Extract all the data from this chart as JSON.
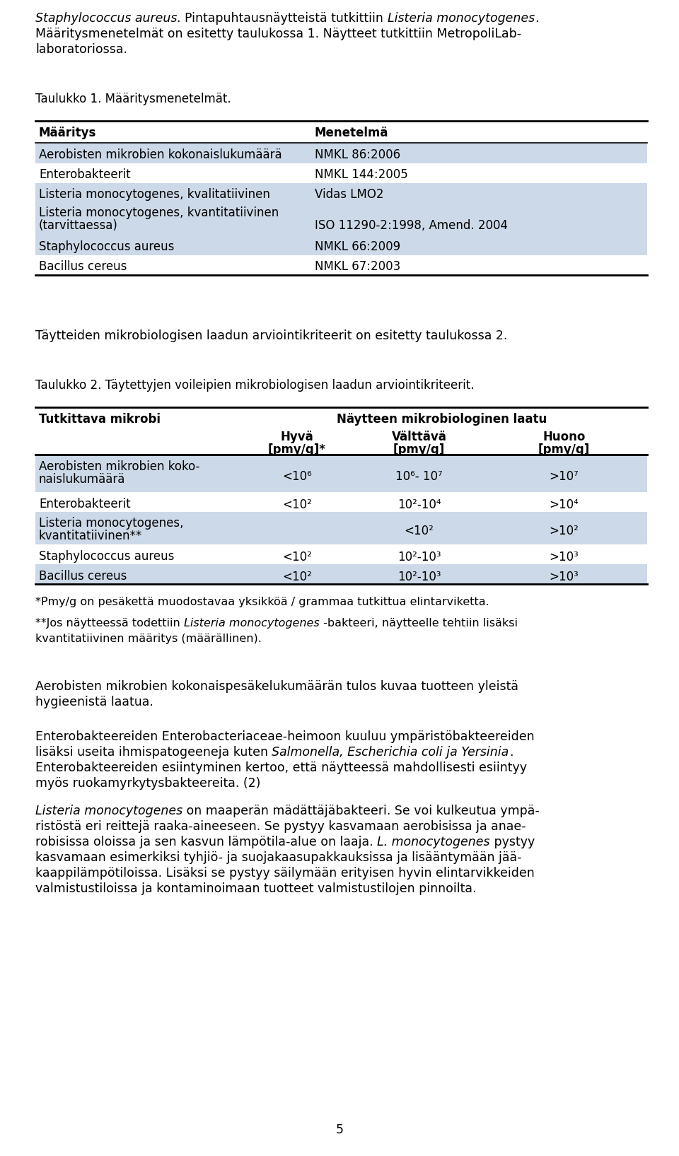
{
  "bg_color": "#ffffff",
  "text_color": "#000000",
  "blue_row_color": "#ccd9e8",
  "white_row_color": "#ffffff",
  "table1_caption": "Taulukko 1. Määritysmenetelmät.",
  "table1_headers": [
    "Määritys",
    "Menetelmä"
  ],
  "table1_rows": [
    [
      "Aerobisten mikrobien kokonaislukumäärä",
      "NMKL 86:2006",
      "blue"
    ],
    [
      "Enterobakteerit",
      "NMKL 144:2005",
      "white"
    ],
    [
      "Listeria monocytogenes, kvalitatiivinen",
      "Vidas LMO2",
      "blue"
    ],
    [
      "Listeria monocytogenes, kvantitatiivinen\n(tarvittaessa)",
      "ISO 11290-2:1998, Amend. 2004",
      "blue"
    ],
    [
      "Staphylococcus aureus",
      "NMKL 66:2009",
      "blue"
    ],
    [
      "Bacillus cereus",
      "NMKL 67:2003",
      "white"
    ]
  ],
  "between_text": "Täytteiden mikrobiologisen laadun arviointikriteerit on esitetty taulukossa 2.",
  "table2_caption": "Taulukko 2. Täytettyjen voileipien mikrobiologisen laadun arviointikriteerit.",
  "table2_col1_header": "Tutkittava mikrobi",
  "table2_group_header": "Näytteen mikrobiologinen laatu",
  "table2_subheaders": [
    "Hyvä\n[pmy/g]*",
    "Välttävä\n[pmy/g]",
    "Huono\n[pmy/g]"
  ],
  "table2_rows": [
    [
      "Aerobisten mikrobien koko-\nnaislukumäärä",
      "<10⁶",
      "10⁶- 10⁷",
      ">10⁷",
      "blue"
    ],
    [
      "Enterobakteerit",
      "<10²",
      "10²-10⁴",
      ">10⁴",
      "white"
    ],
    [
      "Listeria monocytogenes,\nkvantitatiivinen**",
      "",
      "<10²",
      ">10²",
      "blue"
    ],
    [
      "Staphylococcus aureus",
      "<10²",
      "10²-10³",
      ">10³",
      "white"
    ],
    [
      "Bacillus cereus",
      "<10²",
      "10²-10³",
      ">10³",
      "blue"
    ]
  ],
  "footnote1": "*Pmy/g on pesäkettä muodostavaa yksikköä / grammaa tutkittua elintarviketta.",
  "footnote2_pre": "**Jos näytteessä todettiin ",
  "footnote2_italic": "Listeria monocytogenes",
  "footnote2_post": " -bakteeri, näytteelle tehtiin lisäksi",
  "footnote2_line2": "kvantitatiivinen määritys (määrällinen).",
  "para1": "Aerobisten mikrobien kokonaispesäkelukumäärän tulos kuvaa tuotteen yleistä\nhygieenistä laatua.",
  "para2_line1": "Enterobakteereiden Enterobacteriaceae-heimoon kuuluu ympäristöbakteereiden",
  "para2_line2_pre": "lisäksi useita ihmispatogeeneja kuten ",
  "para2_line2_italic": "Salmonella, Escherichia coli ja Yersinia",
  "para2_line2_post": ".",
  "para2_line3": "Enterobakteereiden esiintyminen kertoo, että näytteessä mahdollisesti esiintyy",
  "para2_line4": "myös ruokamyrkytysbakteereita. (2)",
  "para3_line1_italic": "Listeria monocytogenes",
  "para3_line1_post": " on maaperän mädättäjäbakteeri. Se voi kulkeutua ympä-",
  "para3_line2": "ristöstä eri reittejä raaka-aineeseen. Se pystyy kasvamaan aerobisissa ja anae-",
  "para3_line3": "robisissa oloissa ja sen kasvun lämpötila-alue on laaja. ",
  "para3_line3_italic": "L. monocytogenes",
  "para3_line3_post": " pystyy",
  "para3_line4": "kasvamaan esimerkiksi tyhjiö- ja suojakaasupakkauksissa ja lisääntymään jää-",
  "para3_line5": "kaappilämpötiloissa. Lisäksi se pystyy säilymään erityisen hyvin elintarvikkeiden",
  "para3_line6": "valmistustiloissa ja kontaminoimaan tuotteet valmistustilojen pinnoilta.",
  "page_number": "5",
  "font_size_body": 12.5,
  "font_size_caption": 12.0,
  "font_size_table": 12.0,
  "font_size_footnote": 11.5
}
